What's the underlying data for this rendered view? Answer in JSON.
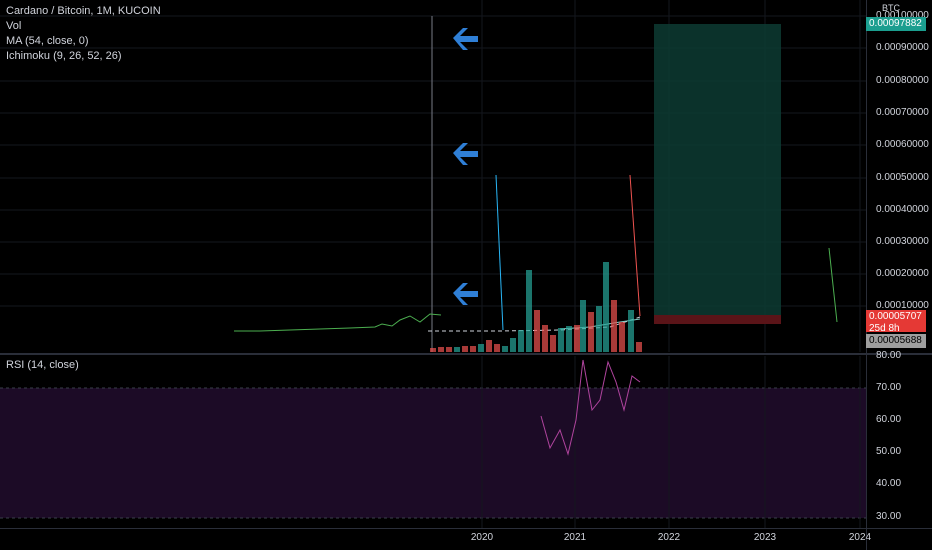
{
  "legend": {
    "title": "Cardano / Bitcoin, 1M, KUCOIN",
    "vol": "Vol",
    "ma": "MA (54, close, 0)",
    "ichimoku": "Ichimoku (9, 26, 52, 26)",
    "rsi": "RSI (14, close)"
  },
  "currency": "BTC",
  "price_axis": [
    "0.00100000",
    "0.00090000",
    "0.00080000",
    "0.00070000",
    "0.00060000",
    "0.00050000",
    "0.00040000",
    "0.00030000",
    "0.00020000",
    "0.00010000"
  ],
  "tags": {
    "target": "0.00097882",
    "last": "0.00005707",
    "countdown": "25d 8h",
    "stop": "0.00005688"
  },
  "rsi_axis": [
    "80.00",
    "70.00",
    "60.00",
    "50.00",
    "40.00",
    "30.00"
  ],
  "time_axis": [
    "2020",
    "2021",
    "2022",
    "2023",
    "2024"
  ],
  "colors": {
    "up": "#26a69a",
    "down": "#ef5350",
    "ma": "#4caf50",
    "rsi": "#b0449e",
    "arrow": "#2f7fd6",
    "target_zone": "#0d3b33",
    "rsi_band": "#1c0b26"
  },
  "icons": [
    "left-arrow-icon",
    "left-arrow-icon",
    "left-arrow-icon"
  ]
}
